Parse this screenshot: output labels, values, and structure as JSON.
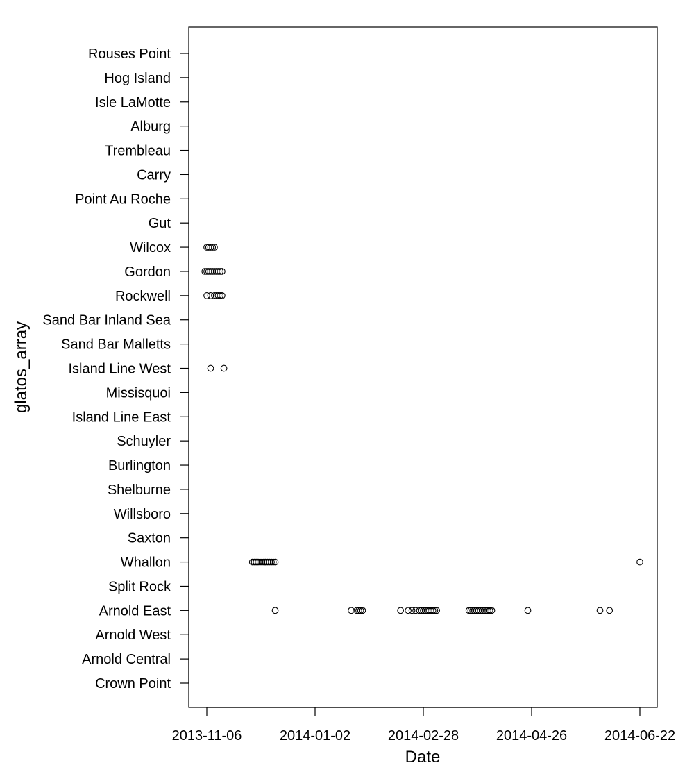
{
  "chart_data": {
    "type": "scatter",
    "xlabel": "Date",
    "ylabel": "glatos_array",
    "x_ticks": [
      "2013-11-06",
      "2014-01-02",
      "2014-02-28",
      "2014-04-26",
      "2014-06-22"
    ],
    "xlim": [
      "2013-10-27",
      "2014-06-30"
    ],
    "categories": [
      "Crown Point",
      "Arnold Central",
      "Arnold West",
      "Arnold East",
      "Split Rock",
      "Whallon",
      "Saxton",
      "Willsboro",
      "Shelburne",
      "Burlington",
      "Schuyler",
      "Island Line East",
      "Missisquoi",
      "Island Line West",
      "Sand Bar Malletts",
      "Sand Bar Inland Sea",
      "Rockwell",
      "Gordon",
      "Wilcox",
      "Gut",
      "Point Au Roche",
      "Carry",
      "Trembleau",
      "Alburg",
      "Isle LaMotte",
      "Hog Island",
      "Rouses Point"
    ],
    "marker": "open-circle",
    "grid": false,
    "legend": "none",
    "points": [
      {
        "category": "Wilcox",
        "x": [
          "2013-11-06",
          "2013-11-07",
          "2013-11-08",
          "2013-11-09",
          "2013-11-10"
        ]
      },
      {
        "category": "Gordon",
        "x": [
          "2013-11-05",
          "2013-11-06",
          "2013-11-07",
          "2013-11-08",
          "2013-11-09",
          "2013-11-10",
          "2013-11-11",
          "2013-11-12",
          "2013-11-13",
          "2013-11-14"
        ]
      },
      {
        "category": "Rockwell",
        "x": [
          "2013-11-06",
          "2013-11-08",
          "2013-11-10",
          "2013-11-11",
          "2013-11-12",
          "2013-11-13",
          "2013-11-14"
        ]
      },
      {
        "category": "Island Line West",
        "x": [
          "2013-11-08",
          "2013-11-15"
        ]
      },
      {
        "category": "Whallon",
        "x": [
          "2013-11-30",
          "2013-12-01",
          "2013-12-02",
          "2013-12-03",
          "2013-12-04",
          "2013-12-05",
          "2013-12-06",
          "2013-12-07",
          "2013-12-08",
          "2013-12-09",
          "2013-12-10",
          "2013-12-11",
          "2013-12-12",
          "2014-06-22"
        ]
      },
      {
        "category": "Arnold East",
        "x": [
          "2013-12-12",
          "2014-01-21",
          "2014-01-24",
          "2014-01-25",
          "2014-01-26",
          "2014-01-27",
          "2014-02-16",
          "2014-02-20",
          "2014-02-22",
          "2014-02-24",
          "2014-02-26",
          "2014-02-27",
          "2014-02-28",
          "2014-03-01",
          "2014-03-02",
          "2014-03-03",
          "2014-03-04",
          "2014-03-05",
          "2014-03-06",
          "2014-03-07",
          "2014-03-24",
          "2014-03-25",
          "2014-03-26",
          "2014-03-27",
          "2014-03-28",
          "2014-03-29",
          "2014-03-30",
          "2014-03-31",
          "2014-04-01",
          "2014-04-02",
          "2014-04-03",
          "2014-04-04",
          "2014-04-05",
          "2014-04-24",
          "2014-06-01",
          "2014-06-06"
        ]
      }
    ]
  }
}
